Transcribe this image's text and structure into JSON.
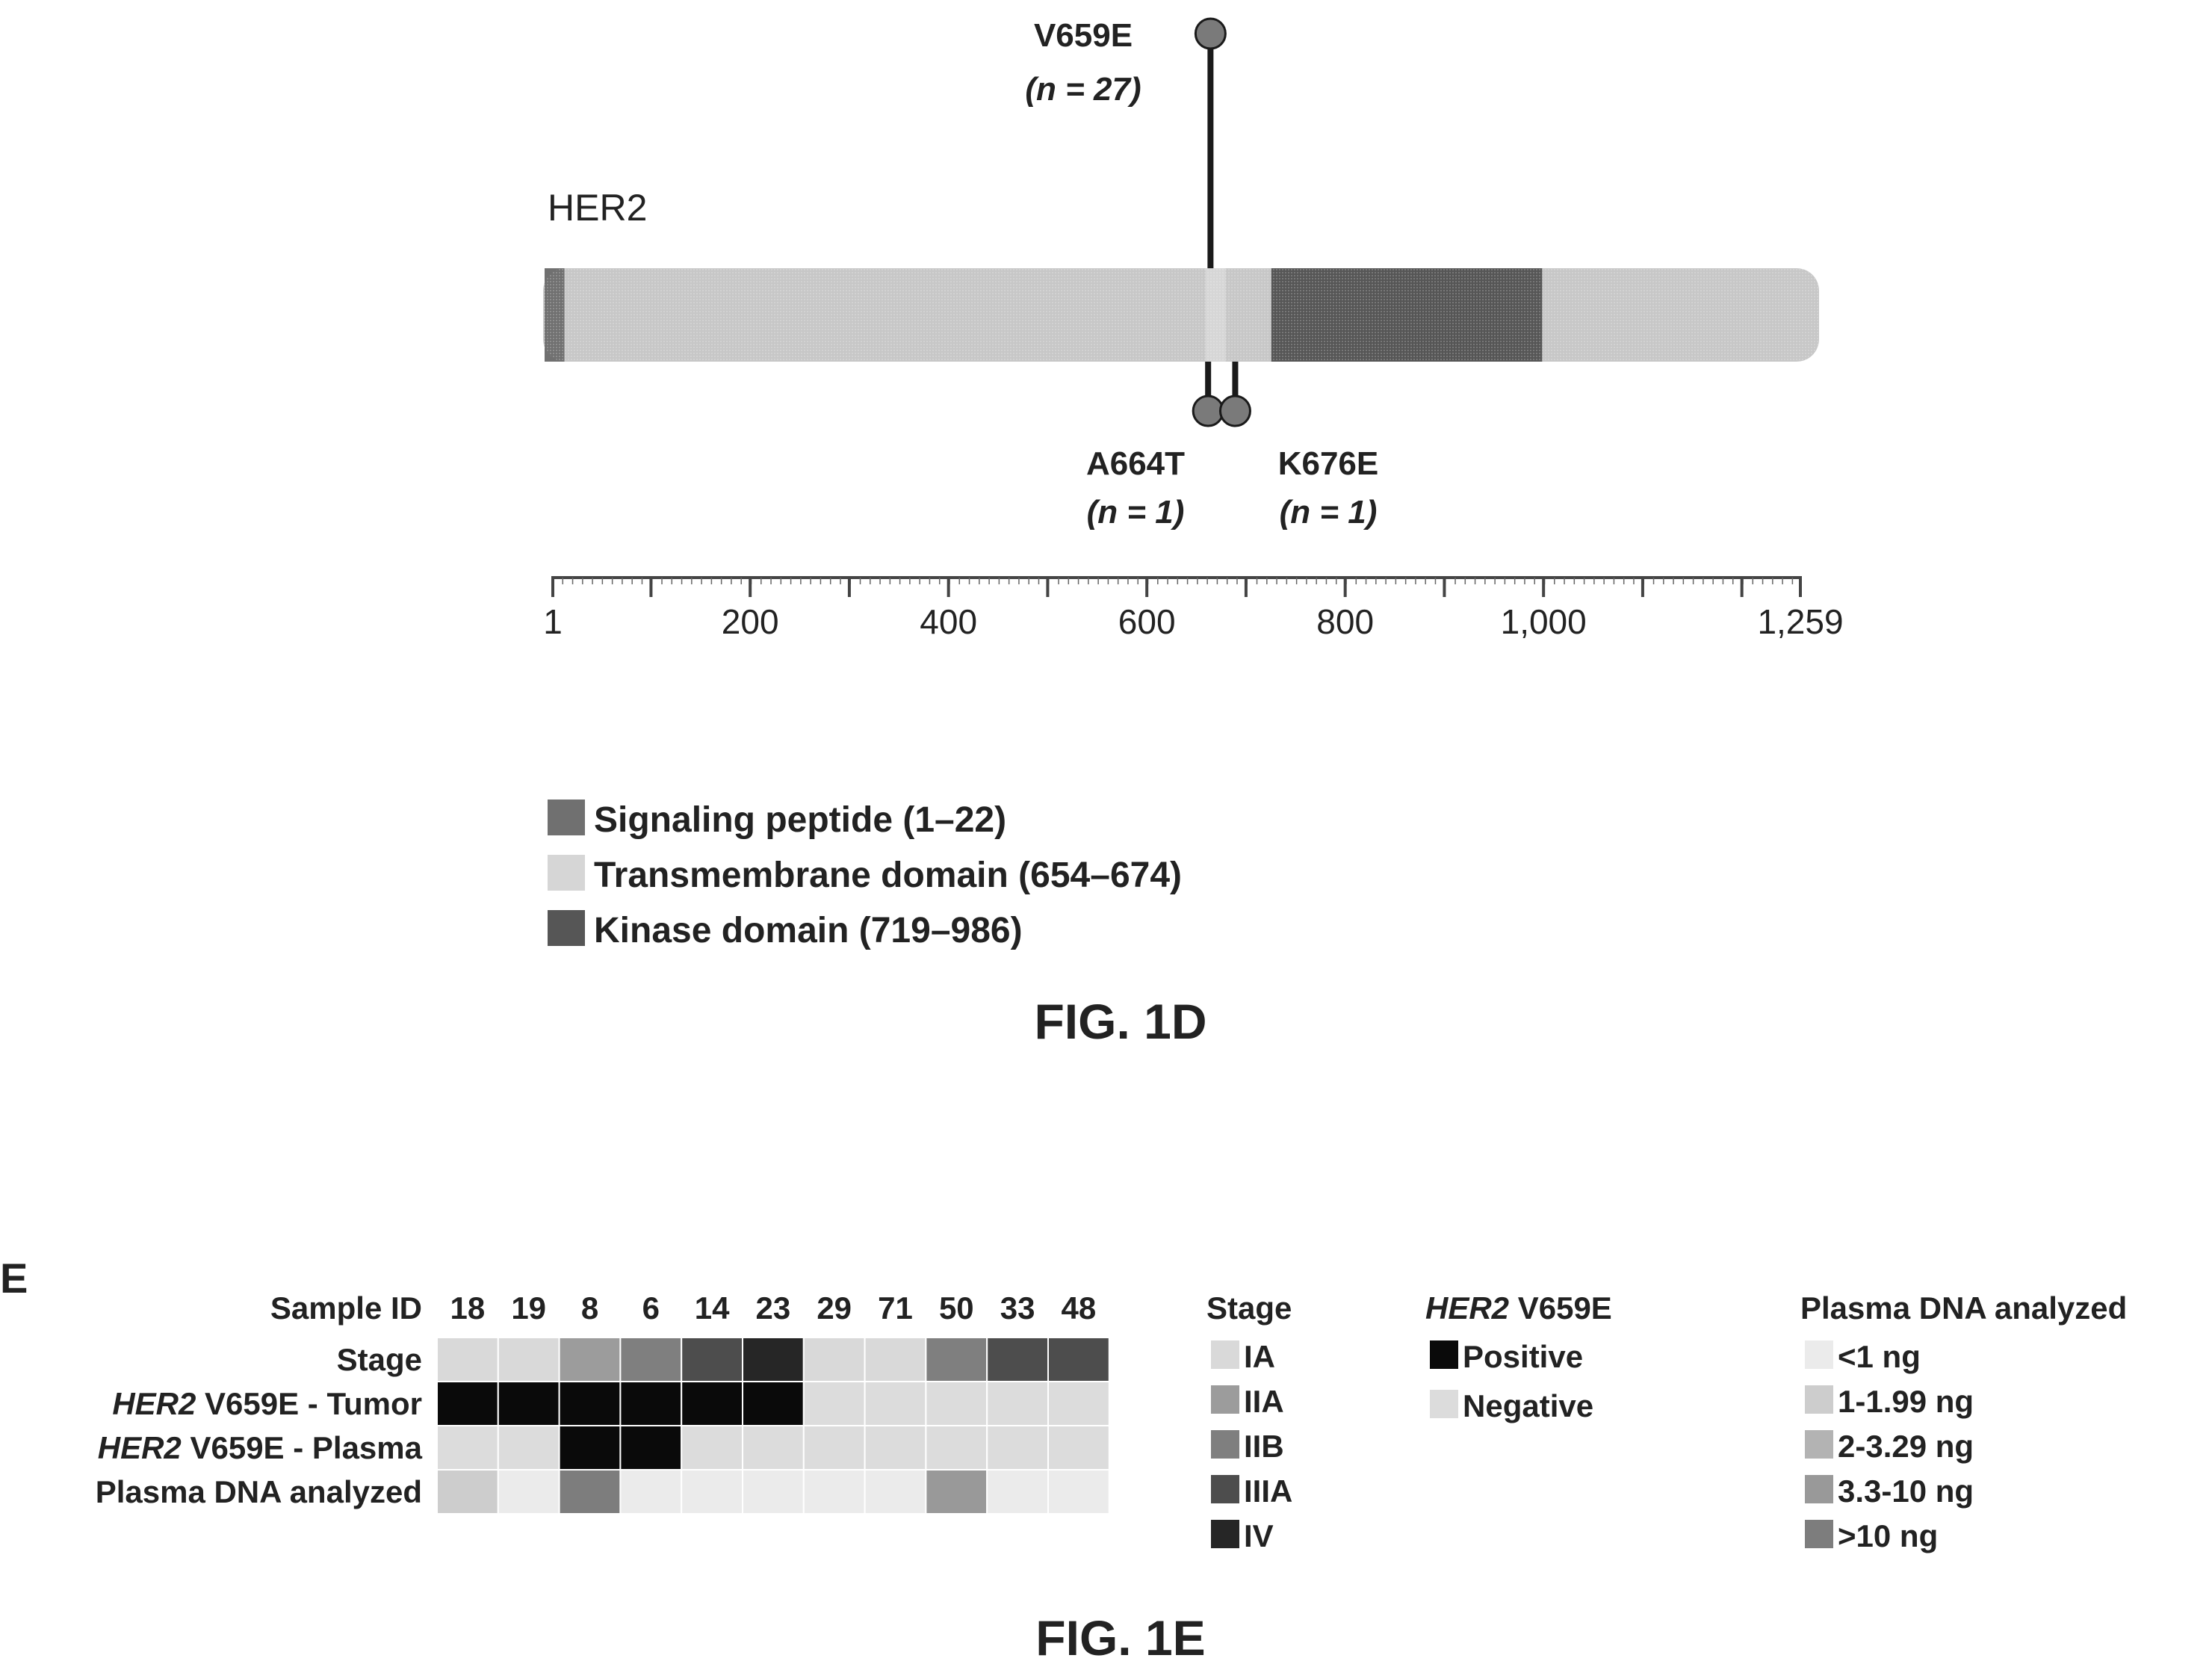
{
  "fig1d": {
    "protein_label": "HER2",
    "protein_length": 1259,
    "axis_ticks": [
      {
        "pos": 1,
        "label": "1"
      },
      {
        "pos": 100,
        "label": ""
      },
      {
        "pos": 200,
        "label": "200"
      },
      {
        "pos": 300,
        "label": ""
      },
      {
        "pos": 400,
        "label": "400"
      },
      {
        "pos": 500,
        "label": ""
      },
      {
        "pos": 600,
        "label": "600"
      },
      {
        "pos": 700,
        "label": ""
      },
      {
        "pos": 800,
        "label": "800"
      },
      {
        "pos": 900,
        "label": ""
      },
      {
        "pos": 1000,
        "label": "1,000"
      },
      {
        "pos": 1100,
        "label": ""
      },
      {
        "pos": 1200,
        "label": ""
      },
      {
        "pos": 1259,
        "label": "1,259"
      }
    ],
    "domains": [
      {
        "name": "Signaling peptide",
        "start": 1,
        "end": 22,
        "color": "#707070"
      },
      {
        "name": "Transmembrane domain",
        "start": 654,
        "end": 674,
        "color": "#d6d6d6"
      },
      {
        "name": "Kinase domain",
        "start": 719,
        "end": 986,
        "color": "#565656"
      }
    ],
    "mutations": [
      {
        "name": "V659E",
        "n_text": "(n = 27)",
        "pos": 659,
        "count": 27,
        "direction": "up"
      },
      {
        "name": "A664T",
        "n_text": "(n = 1)",
        "pos": 664,
        "count": 1,
        "direction": "down"
      },
      {
        "name": "K676E",
        "n_text": "(n = 1)",
        "pos": 676,
        "count": 1,
        "direction": "down"
      }
    ],
    "legend": [
      {
        "label": "Signaling peptide (1–22)",
        "color": "#707070"
      },
      {
        "label": "Transmembrane domain (654–674)",
        "color": "#d6d6d6"
      },
      {
        "label": "Kinase domain (719–986)",
        "color": "#565656"
      }
    ],
    "caption": "FIG. 1D"
  },
  "fig1e": {
    "panel_letter": "E",
    "header_label": "Sample ID",
    "sample_ids": [
      "18",
      "19",
      "8",
      "6",
      "14",
      "23",
      "29",
      "71",
      "50",
      "33",
      "48"
    ],
    "row_labels": [
      {
        "italic": "",
        "rest": "Stage"
      },
      {
        "italic": "HER2",
        "rest": " V659E - Tumor"
      },
      {
        "italic": "HER2",
        "rest": " V659E - Plasma"
      },
      {
        "italic": "",
        "rest": "Plasma DNA analyzed"
      }
    ],
    "rows": {
      "stage": [
        "IA",
        "IA",
        "IIA",
        "IIB",
        "IIIA",
        "IV",
        "IA",
        "IA",
        "IIB",
        "IIIA",
        "IIIA"
      ],
      "tumor": [
        "Positive",
        "Positive",
        "Positive",
        "Positive",
        "Positive",
        "Positive",
        "Negative",
        "Negative",
        "Negative",
        "Negative",
        "Negative"
      ],
      "plasma": [
        "Negative",
        "Negative",
        "Positive",
        "Positive",
        "Negative",
        "Negative",
        "Negative",
        "Negative",
        "Negative",
        "Negative",
        "Negative"
      ],
      "dna": [
        "1-1.99 ng",
        "<1 ng",
        ">10 ng",
        "<1 ng",
        "<1 ng",
        "<1 ng",
        "<1 ng",
        "<1 ng",
        "3.3-10 ng",
        "<1 ng",
        "<1 ng"
      ]
    },
    "legend_stage": {
      "title": "Stage",
      "items": [
        {
          "label": "IA",
          "color": "#d9d9d9"
        },
        {
          "label": "IIA",
          "color": "#9c9c9c"
        },
        {
          "label": "IIB",
          "color": "#7f7f7f"
        },
        {
          "label": "IIIA",
          "color": "#4d4d4d"
        },
        {
          "label": "IV",
          "color": "#262626"
        }
      ]
    },
    "legend_mutation": {
      "title_italic": "HER2",
      "title_rest": " V659E",
      "items": [
        {
          "label": "Positive",
          "color": "#0a0a0a"
        },
        {
          "label": "Negative",
          "color": "#dcdcdc"
        }
      ]
    },
    "legend_dna": {
      "title": "Plasma DNA analyzed",
      "items": [
        {
          "label": "<1 ng",
          "color": "#ebebeb"
        },
        {
          "label": "1-1.99 ng",
          "color": "#cdcdcd"
        },
        {
          "label": "2-3.29 ng",
          "color": "#b3b3b3"
        },
        {
          "label": "3.3-10 ng",
          "color": "#999999"
        },
        {
          "label": ">10 ng",
          "color": "#7d7d7d"
        }
      ]
    },
    "caption": "FIG. 1E"
  }
}
